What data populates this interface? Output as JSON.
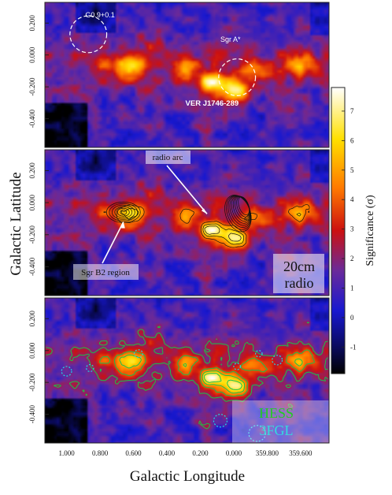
{
  "chart_data": {
    "type": "heatmap",
    "xlabel": "Galactic Longitude",
    "ylabel": "Galactic Latitude",
    "x_ticks": [
      "1.000",
      "0.800",
      "0.600",
      "0.400",
      "0.200",
      "0.000",
      "359.800",
      "359.600"
    ],
    "x_tick_values": [
      1.0,
      0.8,
      0.6,
      0.4,
      0.2,
      0.0,
      -0.2,
      -0.4
    ],
    "y_ticks": [
      "0.200",
      "0.000",
      "-0.200",
      "-0.400"
    ],
    "y_tick_values": [
      0.2,
      0.0,
      -0.2,
      -0.4
    ],
    "xlim": [
      1.13,
      -0.57
    ],
    "ylim": [
      -0.58,
      0.33
    ],
    "colorbar": {
      "label": "Significance (σ)",
      "ticks": [
        "7",
        "6",
        "5",
        "4",
        "3",
        "2",
        "1",
        "0",
        "-1"
      ],
      "tick_values": [
        7,
        6,
        5,
        4,
        3,
        2,
        1,
        0,
        -1
      ],
      "range": [
        -1.9,
        7.8
      ],
      "stops": [
        "#000000",
        "#0a0a5a",
        "#1818d0",
        "#6a2a9a",
        "#cc1010",
        "#ff7a00",
        "#ffe000",
        "#ffffff"
      ]
    },
    "sources": [
      {
        "l": 0.62,
        "b": -0.07,
        "sigma": 5.4
      },
      {
        "l": 0.3,
        "b": -0.09,
        "sigma": 4.2
      },
      {
        "l": 0.13,
        "b": -0.17,
        "sigma": 6.8
      },
      {
        "l": 0.0,
        "b": -0.22,
        "sigma": 7.2
      },
      {
        "l": -0.1,
        "b": -0.1,
        "sigma": 4.0
      },
      {
        "l": -0.2,
        "b": -0.14,
        "sigma": 3.0
      },
      {
        "l": -0.4,
        "b": -0.06,
        "sigma": 4.5
      },
      {
        "l": 0.78,
        "b": -0.07,
        "sigma": 3.0
      },
      {
        "l": 0.16,
        "b": -0.44,
        "sigma": 2.8
      },
      {
        "l": -0.35,
        "b": -0.4,
        "sigma": 2.8
      },
      {
        "l": 0.48,
        "b": 0.06,
        "sigma": 2.6
      }
    ],
    "panels": [
      {
        "annotations": [
          {
            "text": "G0.9+0.1",
            "circle": {
              "l": 0.87,
              "b": 0.13,
              "r": 0.11
            }
          },
          {
            "text": "Sgr A*",
            "circle": {
              "l": -0.02,
              "b": -0.14,
              "r": 0.11
            }
          },
          {
            "text": "VER J1746-289"
          }
        ]
      },
      {
        "annotations": [
          {
            "text": "radio arc",
            "arrow_to": {
              "l": 0.16,
              "b": -0.07
            }
          },
          {
            "text": "Sgr B2 region",
            "arrow_to": {
              "l": 0.66,
              "b": -0.12
            }
          }
        ],
        "overlay_label": [
          "20cm",
          "radio"
        ],
        "contour_color": "#111111"
      },
      {
        "overlay_label": [
          "HESS",
          "3FGL"
        ],
        "overlay_colors": [
          "#22cc22",
          "#33dddd"
        ],
        "contour_color": "#19c24a",
        "circle_color": "#1fd9e6"
      }
    ]
  }
}
